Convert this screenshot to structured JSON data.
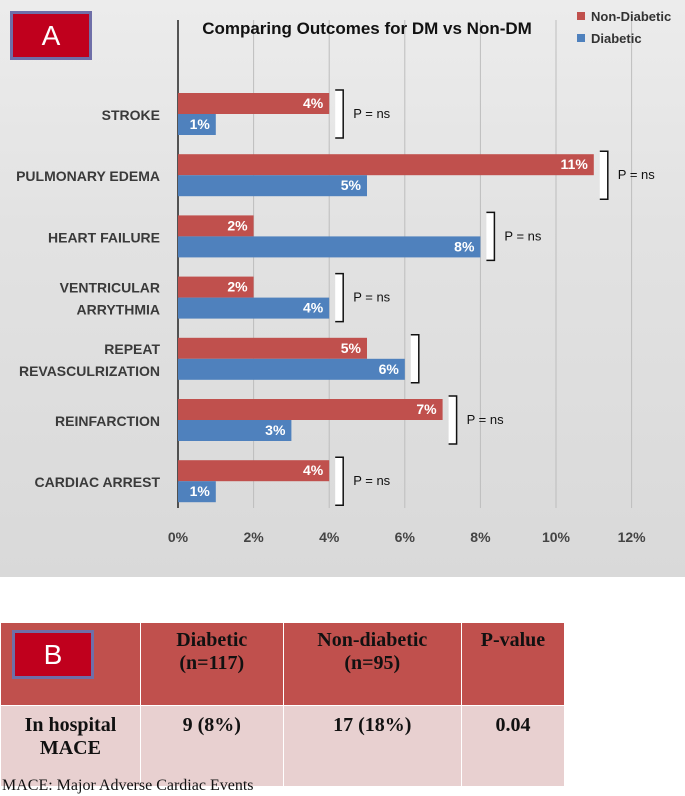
{
  "panel_a": {
    "label": "A"
  },
  "panel_b": {
    "label": "B"
  },
  "chart_data": {
    "type": "bar",
    "orientation": "horizontal",
    "title": "Comparing Outcomes for DM vs Non-DM",
    "categories": [
      "STROKE",
      "PULMONARY EDEMA",
      "HEART FAILURE",
      "VENTRICULAR ARRYTHMIA",
      "REPEAT REVASCULRIZATION",
      "REINFARCTION",
      "CARDIAC ARREST"
    ],
    "category_lines": [
      [
        "STROKE"
      ],
      [
        "PULMONARY EDEMA"
      ],
      [
        "HEART FAILURE"
      ],
      [
        "VENTRICULAR",
        "ARRYTHMIA"
      ],
      [
        "REPEAT",
        "REVASCULRIZATION"
      ],
      [
        "REINFARCTION"
      ],
      [
        "CARDIAC ARREST"
      ]
    ],
    "series": [
      {
        "name": "Non-Diabetic",
        "color": "#c0504d",
        "values": [
          4,
          11,
          2,
          2,
          5,
          7,
          4
        ],
        "labels": [
          "4%",
          "11%",
          "2%",
          "2%",
          "5%",
          "7%",
          "4%"
        ]
      },
      {
        "name": "Diabetic",
        "color": "#4f81bd",
        "values": [
          1,
          5,
          8,
          4,
          6,
          3,
          1
        ],
        "labels": [
          "1%",
          "5%",
          "8%",
          "4%",
          "6%",
          "3%",
          "1%"
        ]
      }
    ],
    "annotations": [
      "P = ns",
      "P = ns",
      "P = ns",
      "P = ns",
      "",
      "P = ns",
      "P = ns"
    ],
    "xlim": [
      0,
      12
    ],
    "xticks": [
      0,
      2,
      4,
      6,
      8,
      10,
      12
    ],
    "xtick_labels": [
      "0%",
      "2%",
      "4%",
      "6%",
      "8%",
      "10%",
      "12%"
    ],
    "legend_position": "top-right",
    "grid": true
  },
  "table": {
    "headers": [
      "",
      "Diabetic\n(n=117)",
      "Non-diabetic\n(n=95)",
      "P-value"
    ],
    "rows": [
      [
        "In hospital\nMACE",
        "9 (8%)",
        "17 (18%)",
        "0.04"
      ]
    ]
  },
  "footnote": "MACE: Major Adverse Cardiac Events"
}
